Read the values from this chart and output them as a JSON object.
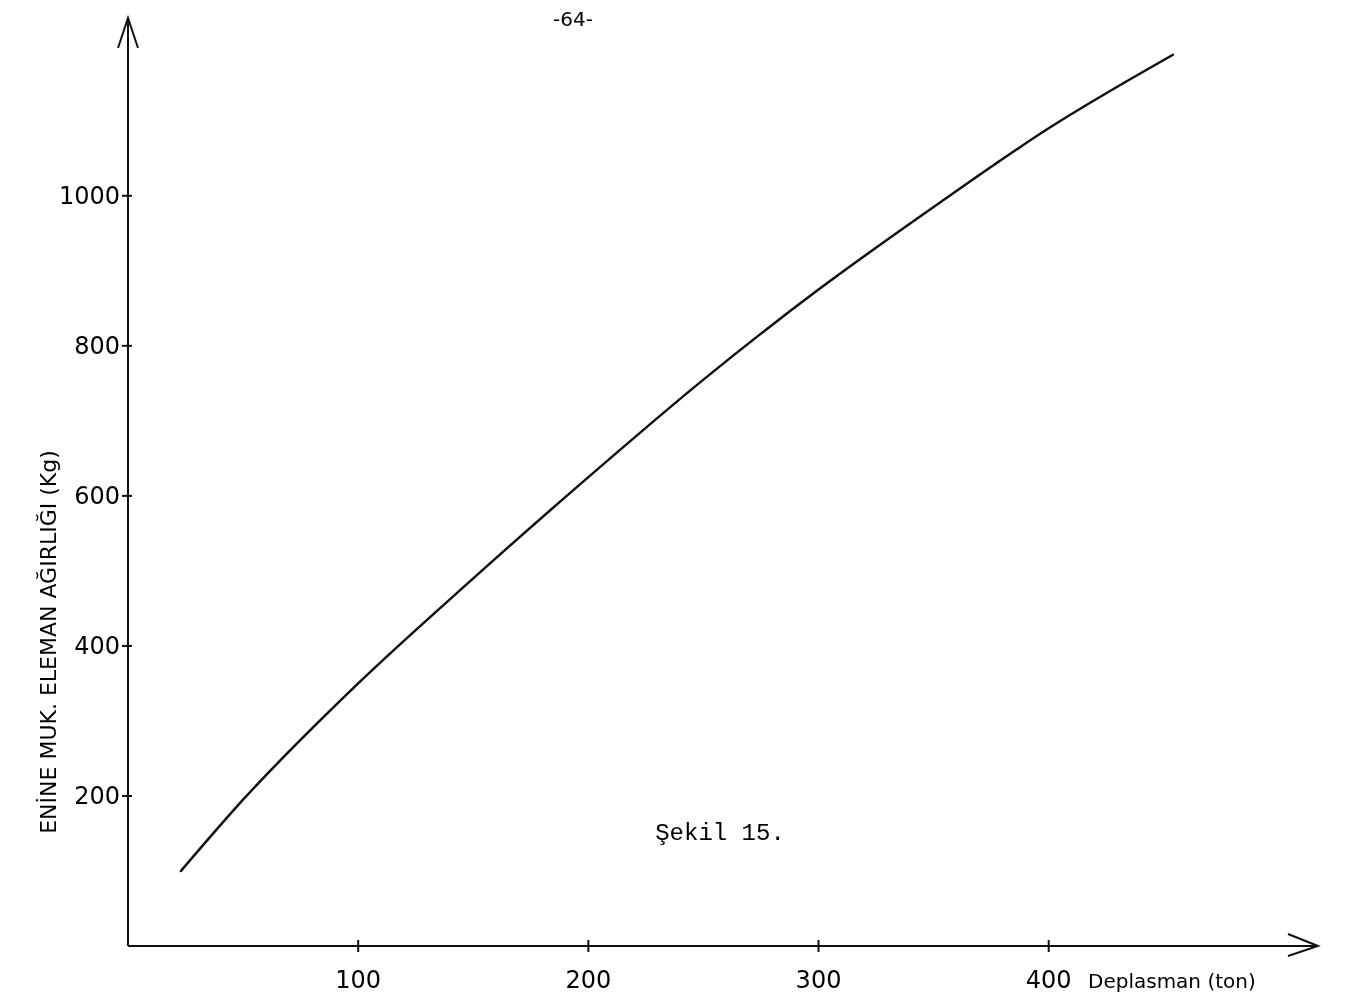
{
  "chart_data": {
    "type": "line",
    "xlabel": "Deplasman (ton)",
    "ylabel": "ENİNE MUK. ELEMAN AĞIRLIĞI (Kg)",
    "annotations": [
      "Şekil 15.",
      "-64-"
    ],
    "xlim": [
      0,
      517
    ],
    "ylim": [
      0,
      1237
    ],
    "xticks": [
      100,
      200,
      300,
      400
    ],
    "yticks": [
      200,
      400,
      600,
      800,
      1000
    ],
    "grid": false,
    "marker": "none",
    "line_style": "solid",
    "series": [
      {
        "color": "#111111",
        "x": [
          23,
          50,
          100,
          150,
          200,
          250,
          300,
          350,
          400,
          454
        ],
        "values": [
          100,
          195,
          350,
          490,
          625,
          755,
          875,
          985,
          1090,
          1188
        ]
      }
    ]
  }
}
